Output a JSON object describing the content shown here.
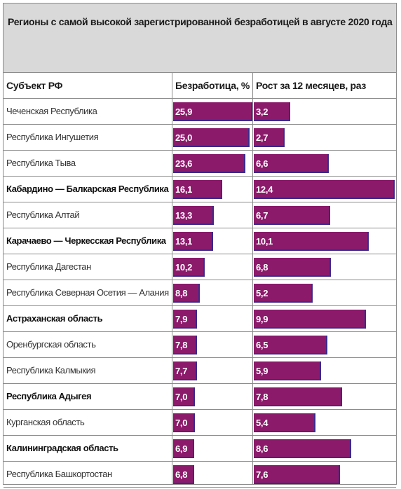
{
  "title": "Регионы с самой высокой зарегистрированной безработицей в августе 2020 года",
  "headers": {
    "region": "Субъект РФ",
    "unemployment": "Безработица, %",
    "growth": "Рост за 12 месяцев, раз"
  },
  "colors": {
    "bar": "#8b1a6b",
    "bar_edge": "#3a2a8c",
    "header_bg": "#d9d9d9",
    "grid": "#8c8c8c"
  },
  "chart_data": {
    "type": "table",
    "title": "Регионы с самой высокой зарегистрированной безработицей в августе 2020 года",
    "columns": [
      "Субъект РФ",
      "Безработица, %",
      "Рост за 12 месяцев, раз"
    ],
    "unemployment_max": 25.9,
    "growth_max": 12.4,
    "rows": [
      {
        "region": "Чеченская Республика",
        "bold": false,
        "unemployment": 25.9,
        "unemployment_label": "25,9",
        "growth": 3.2,
        "growth_label": "3,2"
      },
      {
        "region": "Республика Ингушетия",
        "bold": false,
        "unemployment": 25.0,
        "unemployment_label": "25,0",
        "growth": 2.7,
        "growth_label": "2,7"
      },
      {
        "region": "Республика Тыва",
        "bold": false,
        "unemployment": 23.6,
        "unemployment_label": "23,6",
        "growth": 6.6,
        "growth_label": "6,6"
      },
      {
        "region": "Кабардино — Балкарская Республика",
        "bold": true,
        "unemployment": 16.1,
        "unemployment_label": "16,1",
        "growth": 12.4,
        "growth_label": "12,4"
      },
      {
        "region": "Республика Алтай",
        "bold": false,
        "unemployment": 13.3,
        "unemployment_label": "13,3",
        "growth": 6.7,
        "growth_label": "6,7"
      },
      {
        "region": "Карачаево — Черкесская Республика",
        "bold": true,
        "unemployment": 13.1,
        "unemployment_label": "13,1",
        "growth": 10.1,
        "growth_label": "10,1"
      },
      {
        "region": "Республика Дагестан",
        "bold": false,
        "unemployment": 10.2,
        "unemployment_label": "10,2",
        "growth": 6.8,
        "growth_label": "6,8"
      },
      {
        "region": "Республика Северная Осетия — Алания",
        "bold": false,
        "unemployment": 8.8,
        "unemployment_label": "8,8",
        "growth": 5.2,
        "growth_label": "5,2"
      },
      {
        "region": "Астраханская область",
        "bold": true,
        "unemployment": 7.9,
        "unemployment_label": "7,9",
        "growth": 9.9,
        "growth_label": "9,9"
      },
      {
        "region": "Оренбургская область",
        "bold": false,
        "unemployment": 7.8,
        "unemployment_label": "7,8",
        "growth": 6.5,
        "growth_label": "6,5"
      },
      {
        "region": "Республика Калмыкия",
        "bold": false,
        "unemployment": 7.7,
        "unemployment_label": "7,7",
        "growth": 5.9,
        "growth_label": "5,9"
      },
      {
        "region": "Республика Адыгея",
        "bold": true,
        "unemployment": 7.0,
        "unemployment_label": "7,0",
        "growth": 7.8,
        "growth_label": "7,8"
      },
      {
        "region": "Курганская область",
        "bold": false,
        "unemployment": 7.0,
        "unemployment_label": "7,0",
        "growth": 5.4,
        "growth_label": "5,4"
      },
      {
        "region": "Калининградская область",
        "bold": true,
        "unemployment": 6.9,
        "unemployment_label": "6,9",
        "growth": 8.6,
        "growth_label": "8,6"
      },
      {
        "region": "Республика Башкортостан",
        "bold": false,
        "unemployment": 6.8,
        "unemployment_label": "6,8",
        "growth": 7.6,
        "growth_label": "7,6"
      }
    ]
  }
}
